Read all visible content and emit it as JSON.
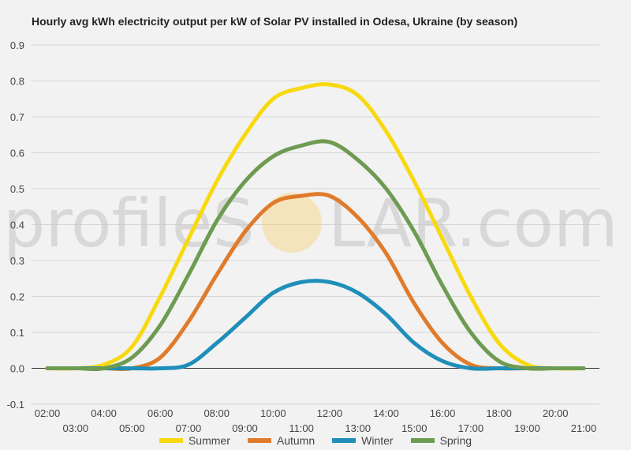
{
  "chart_data": {
    "type": "line",
    "title": "Hourly avg kWh electricity output per kW of Solar PV installed in Odesa, Ukraine (by season)",
    "xlabel": "",
    "ylabel": "",
    "x_tick_labels": [
      "02:00",
      "03:00",
      "04:00",
      "05:00",
      "06:00",
      "07:00",
      "08:00",
      "09:00",
      "10:00",
      "11:00",
      "12:00",
      "13:00",
      "14:00",
      "15:00",
      "16:00",
      "17:00",
      "18:00",
      "19:00",
      "20:00",
      "21:00"
    ],
    "ylim": [
      -0.1,
      0.9
    ],
    "y_ticks": [
      "-0.1",
      "0.0",
      "0.1",
      "0.2",
      "0.3",
      "0.4",
      "0.5",
      "0.6",
      "0.7",
      "0.8",
      "0.9"
    ],
    "grid": true,
    "legend": "bottom",
    "x": [
      "02:00",
      "03:00",
      "04:00",
      "05:00",
      "06:00",
      "07:00",
      "08:00",
      "09:00",
      "10:00",
      "11:00",
      "12:00",
      "13:00",
      "14:00",
      "15:00",
      "16:00",
      "17:00",
      "18:00",
      "19:00",
      "20:00",
      "21:00"
    ],
    "series": [
      {
        "name": "Summer",
        "color": "#f8d90f",
        "values": [
          0,
          0,
          0.01,
          0.06,
          0.2,
          0.36,
          0.52,
          0.65,
          0.75,
          0.78,
          0.79,
          0.76,
          0.66,
          0.52,
          0.36,
          0.2,
          0.07,
          0.01,
          0,
          0
        ]
      },
      {
        "name": "Autumn",
        "color": "#e07b2b",
        "values": [
          0,
          0,
          0,
          0,
          0.03,
          0.13,
          0.26,
          0.38,
          0.46,
          0.48,
          0.48,
          0.42,
          0.32,
          0.18,
          0.07,
          0.01,
          0,
          0,
          0,
          0
        ]
      },
      {
        "name": "Winter",
        "color": "#1f8fba",
        "values": [
          0,
          0,
          0,
          0,
          0,
          0.01,
          0.07,
          0.14,
          0.21,
          0.24,
          0.24,
          0.21,
          0.15,
          0.07,
          0.02,
          0,
          0,
          0,
          0,
          0
        ]
      },
      {
        "name": "Spring",
        "color": "#6e9b52",
        "values": [
          0,
          0,
          0,
          0.03,
          0.12,
          0.26,
          0.41,
          0.52,
          0.59,
          0.62,
          0.63,
          0.58,
          0.5,
          0.38,
          0.23,
          0.1,
          0.02,
          0,
          0,
          0
        ]
      }
    ]
  },
  "watermark": {
    "text": "profileSOLAR.com",
    "prefix": "profileS",
    "suffix": "LAR.com",
    "sun_color": "#f6d27a"
  }
}
